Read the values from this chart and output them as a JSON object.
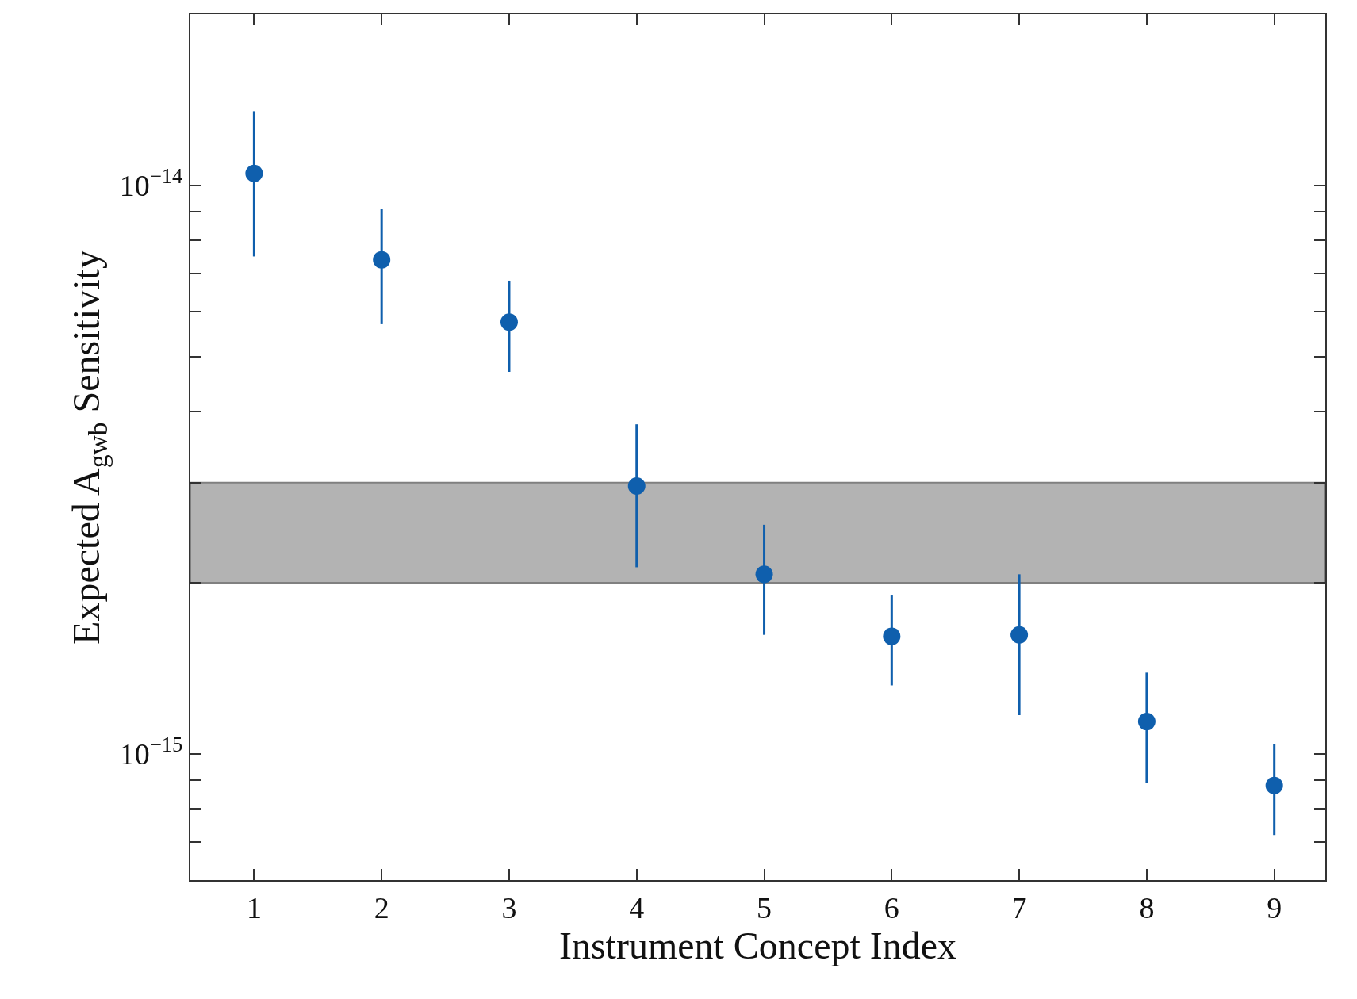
{
  "chart_data": {
    "type": "scatter",
    "xlabel": "Instrument Concept Index",
    "ylabel": "Expected A$_{gwb}$ Sensitivity",
    "x": [
      1,
      2,
      3,
      4,
      5,
      6,
      7,
      8,
      9
    ],
    "series": [
      {
        "color": "#0f5fad",
        "values": [
          1.05e-14,
          7.4e-15,
          5.75e-15,
          2.96e-15,
          2.07e-15,
          1.61e-15,
          1.62e-15,
          1.14e-15,
          8.8e-16
        ],
        "errors": [
          [
            7.5e-15,
            1.35e-14
          ],
          [
            5.7e-15,
            9.1e-15
          ],
          [
            4.7e-15,
            6.8e-15
          ],
          [
            2.13e-15,
            3.8e-15
          ],
          [
            1.62e-15,
            2.53e-15
          ],
          [
            1.32e-15,
            1.9e-15
          ],
          [
            1.17e-15,
            2.07e-15
          ],
          [
            8.9e-16,
            1.39e-15
          ],
          [
            7.2e-16,
            1.04e-15
          ]
        ]
      }
    ],
    "marker": "circle",
    "log": "y",
    "xlim": [
      0.5,
      9.4
    ],
    "ylim": [
      6e-16,
      2e-14
    ],
    "xticks": [
      1,
      2,
      3,
      4,
      5,
      6,
      7,
      8,
      9
    ],
    "yticks": [
      {
        "value": 7e-16,
        "label": null
      },
      {
        "value": 8e-16,
        "label": null
      },
      {
        "value": 9e-16,
        "label": null
      },
      {
        "value": 1e-15,
        "label": "10$^{−15}$"
      },
      {
        "value": 2e-15,
        "label": null
      },
      {
        "value": 3e-15,
        "label": null
      },
      {
        "value": 4e-15,
        "label": null
      },
      {
        "value": 5e-15,
        "label": null
      },
      {
        "value": 6e-15,
        "label": null
      },
      {
        "value": 7e-15,
        "label": null
      },
      {
        "value": 8e-15,
        "label": null
      },
      {
        "value": 9e-15,
        "label": null
      },
      {
        "value": 1e-14,
        "label": "10$^{−14}$"
      }
    ],
    "bands": [
      {
        "axis": "y",
        "from": 2e-15,
        "to": 3e-15,
        "color": "#b3b3b3"
      }
    ]
  }
}
